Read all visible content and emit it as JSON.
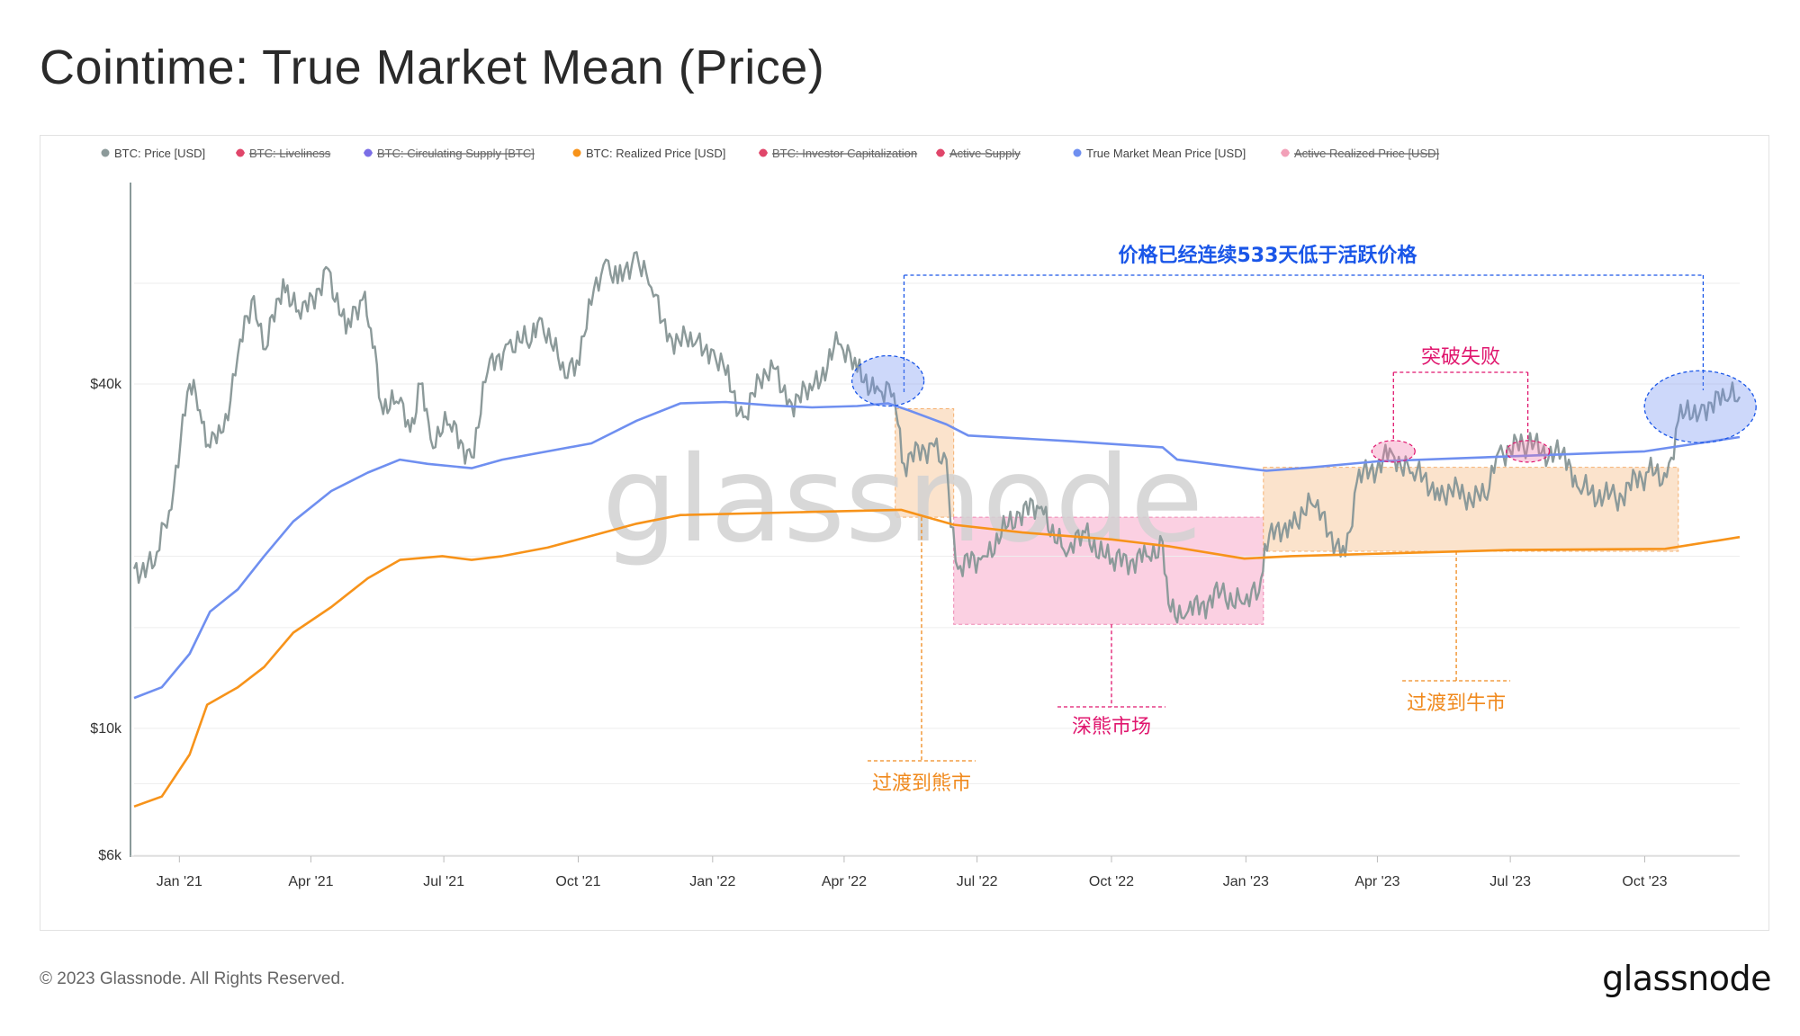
{
  "title": "Cointime: True Market Mean (Price)",
  "footer": {
    "copyright": "© 2023 Glassnode. All Rights Reserved.",
    "logo": "glassnode"
  },
  "watermark": "glassnode",
  "colors": {
    "price": "#8c9a9a",
    "true_mean": "#6f8ff0",
    "realized": "#f7931a",
    "strike_red": "#e0466a",
    "strike_purple": "#7b6ee6",
    "strike_pink": "#f2a0b8",
    "orange_zone": "#fbe3cc",
    "pink_zone": "#fbd0e2",
    "annotation_blue": "#1a56e8",
    "annotation_pink": "#e0166e",
    "annotation_orange": "#f08a1e"
  },
  "legend": [
    {
      "label": "BTC: Price [USD]",
      "color": "#8c9a9a",
      "active": true
    },
    {
      "label": "BTC: Liveliness",
      "color": "#e0466a",
      "active": false
    },
    {
      "label": "BTC: Circulating Supply [BTC]",
      "color": "#7b6ee6",
      "active": false
    },
    {
      "label": "BTC: Realized Price [USD]",
      "color": "#f7931a",
      "active": true
    },
    {
      "label": "BTC: Investor Capitalization",
      "color": "#e0466a",
      "active": false
    },
    {
      "label": "Active Supply",
      "color": "#e0466a",
      "active": false
    },
    {
      "label": "True Market Mean Price [USD]",
      "color": "#6f8ff0",
      "active": true
    },
    {
      "label": "Active Realized Price [USD]",
      "color": "#f2a0b8",
      "active": false
    }
  ],
  "annotations": {
    "days_below": "价格已经连续533天低于活跃价格",
    "breakout_fail": "突破失败",
    "deep_bear": "深熊市场",
    "to_bear": "过渡到熊市",
    "to_bull": "过渡到牛市"
  },
  "chart_data": {
    "type": "line",
    "y_scale": "log",
    "ylim": [
      6000,
      90000
    ],
    "y_ticks": [
      {
        "label": "$6k",
        "value": 6000
      },
      {
        "label": "$10k",
        "value": 10000
      },
      {
        "label": "$40k",
        "value": 40000
      }
    ],
    "x_range": [
      "2020-12-01",
      "2023-12-05"
    ],
    "x_ticks": [
      {
        "label": "Jan '21",
        "date": "2021-01-01"
      },
      {
        "label": "Apr '21",
        "date": "2021-04-01"
      },
      {
        "label": "Jul '21",
        "date": "2021-07-01"
      },
      {
        "label": "Oct '21",
        "date": "2021-10-01"
      },
      {
        "label": "Jan '22",
        "date": "2022-01-01"
      },
      {
        "label": "Apr '22",
        "date": "2022-04-01"
      },
      {
        "label": "Jul '22",
        "date": "2022-07-01"
      },
      {
        "label": "Oct '22",
        "date": "2022-10-01"
      },
      {
        "label": "Jan '23",
        "date": "2023-01-01"
      },
      {
        "label": "Apr '23",
        "date": "2023-04-01"
      },
      {
        "label": "Jul '23",
        "date": "2023-07-01"
      },
      {
        "label": "Oct '23",
        "date": "2023-10-01"
      }
    ],
    "series": [
      {
        "name": "BTC: Price [USD]",
        "color": "#8c9a9a",
        "points": [
          [
            "2020-12-01",
            19000
          ],
          [
            "2020-12-15",
            19300
          ],
          [
            "2020-12-25",
            24000
          ],
          [
            "2021-01-08",
            40000
          ],
          [
            "2021-01-15",
            36000
          ],
          [
            "2021-01-22",
            31000
          ],
          [
            "2021-01-31",
            33000
          ],
          [
            "2021-02-10",
            45000
          ],
          [
            "2021-02-21",
            57000
          ],
          [
            "2021-03-01",
            46000
          ],
          [
            "2021-03-13",
            61000
          ],
          [
            "2021-03-25",
            52000
          ],
          [
            "2021-04-13",
            63500
          ],
          [
            "2021-04-25",
            49000
          ],
          [
            "2021-05-08",
            58000
          ],
          [
            "2021-05-12",
            50000
          ],
          [
            "2021-05-19",
            37000
          ],
          [
            "2021-05-31",
            37000
          ],
          [
            "2021-06-08",
            33000
          ],
          [
            "2021-06-15",
            40000
          ],
          [
            "2021-06-22",
            32000
          ],
          [
            "2021-07-05",
            34000
          ],
          [
            "2021-07-20",
            29800
          ],
          [
            "2021-07-31",
            42000
          ],
          [
            "2021-08-14",
            47000
          ],
          [
            "2021-08-30",
            47500
          ],
          [
            "2021-09-06",
            52000
          ],
          [
            "2021-09-22",
            41000
          ],
          [
            "2021-09-30",
            44000
          ],
          [
            "2021-10-10",
            55000
          ],
          [
            "2021-10-20",
            66000
          ],
          [
            "2021-10-28",
            60000
          ],
          [
            "2021-11-10",
            68000
          ],
          [
            "2021-11-20",
            59000
          ],
          [
            "2021-12-04",
            48000
          ],
          [
            "2021-12-20",
            47000
          ],
          [
            "2021-12-31",
            46000
          ],
          [
            "2022-01-10",
            41500
          ],
          [
            "2022-01-22",
            35000
          ],
          [
            "2022-02-10",
            44000
          ],
          [
            "2022-02-24",
            37000
          ],
          [
            "2022-03-10",
            39000
          ],
          [
            "2022-03-28",
            47000
          ],
          [
            "2022-04-10",
            42000
          ],
          [
            "2022-04-25",
            39000
          ],
          [
            "2022-05-05",
            38500
          ],
          [
            "2022-05-12",
            29000
          ],
          [
            "2022-05-31",
            31500
          ],
          [
            "2022-06-10",
            29500
          ],
          [
            "2022-06-13",
            22500
          ],
          [
            "2022-06-18",
            19000
          ],
          [
            "2022-07-05",
            20000
          ],
          [
            "2022-07-30",
            23800
          ],
          [
            "2022-08-14",
            24400
          ],
          [
            "2022-08-31",
            20000
          ],
          [
            "2022-09-13",
            22000
          ],
          [
            "2022-09-30",
            19400
          ],
          [
            "2022-10-25",
            20000
          ],
          [
            "2022-11-05",
            21200
          ],
          [
            "2022-11-09",
            16500
          ],
          [
            "2022-11-21",
            15800
          ],
          [
            "2022-12-15",
            17300
          ],
          [
            "2022-12-31",
            16500
          ],
          [
            "2023-01-10",
            17300
          ],
          [
            "2023-01-14",
            21000
          ],
          [
            "2023-01-31",
            23100
          ],
          [
            "2023-02-16",
            24500
          ],
          [
            "2023-03-10",
            20000
          ],
          [
            "2023-03-18",
            27000
          ],
          [
            "2023-04-11",
            30300
          ],
          [
            "2023-04-25",
            28000
          ],
          [
            "2023-05-12",
            26300
          ],
          [
            "2023-06-15",
            25100
          ],
          [
            "2023-06-23",
            30500
          ],
          [
            "2023-07-13",
            31300
          ],
          [
            "2023-08-10",
            29500
          ],
          [
            "2023-08-17",
            26200
          ],
          [
            "2023-09-11",
            25200
          ],
          [
            "2023-10-02",
            28000
          ],
          [
            "2023-10-16",
            27500
          ],
          [
            "2023-10-24",
            34500
          ],
          [
            "2023-11-09",
            36800
          ],
          [
            "2023-11-25",
            37500
          ],
          [
            "2023-12-05",
            38000
          ]
        ]
      },
      {
        "name": "True Market Mean Price [USD]",
        "color": "#6f8ff0",
        "points": [
          [
            "2020-12-01",
            11300
          ],
          [
            "2020-12-20",
            11800
          ],
          [
            "2021-01-08",
            13500
          ],
          [
            "2021-01-22",
            16000
          ],
          [
            "2021-02-10",
            17500
          ],
          [
            "2021-02-28",
            20000
          ],
          [
            "2021-03-20",
            23000
          ],
          [
            "2021-04-15",
            26000
          ],
          [
            "2021-05-10",
            28000
          ],
          [
            "2021-06-01",
            29500
          ],
          [
            "2021-06-20",
            29000
          ],
          [
            "2021-07-20",
            28500
          ],
          [
            "2021-08-10",
            29500
          ],
          [
            "2021-09-10",
            30500
          ],
          [
            "2021-10-10",
            31500
          ],
          [
            "2021-11-10",
            34500
          ],
          [
            "2021-12-10",
            37000
          ],
          [
            "2022-01-10",
            37200
          ],
          [
            "2022-02-10",
            36700
          ],
          [
            "2022-03-10",
            36400
          ],
          [
            "2022-04-10",
            36600
          ],
          [
            "2022-05-01",
            37000
          ],
          [
            "2022-05-15",
            36000
          ],
          [
            "2022-06-10",
            34000
          ],
          [
            "2022-06-25",
            32500
          ],
          [
            "2022-09-01",
            31800
          ],
          [
            "2022-11-05",
            31000
          ],
          [
            "2022-11-15",
            29500
          ],
          [
            "2022-12-31",
            28500
          ],
          [
            "2023-01-15",
            28200
          ],
          [
            "2023-02-15",
            28600
          ],
          [
            "2023-04-01",
            29300
          ],
          [
            "2023-07-01",
            29900
          ],
          [
            "2023-10-01",
            30500
          ],
          [
            "2023-12-05",
            32300
          ]
        ]
      },
      {
        "name": "BTC: Realized Price [USD]",
        "color": "#f7931a",
        "points": [
          [
            "2020-12-01",
            7300
          ],
          [
            "2020-12-20",
            7600
          ],
          [
            "2021-01-08",
            9000
          ],
          [
            "2021-01-20",
            11000
          ],
          [
            "2021-02-10",
            11800
          ],
          [
            "2021-02-28",
            12800
          ],
          [
            "2021-03-20",
            14700
          ],
          [
            "2021-04-15",
            16300
          ],
          [
            "2021-05-10",
            18300
          ],
          [
            "2021-06-01",
            19700
          ],
          [
            "2021-06-30",
            20000
          ],
          [
            "2021-07-20",
            19700
          ],
          [
            "2021-08-10",
            20000
          ],
          [
            "2021-09-10",
            20700
          ],
          [
            "2021-10-10",
            21700
          ],
          [
            "2021-11-10",
            22800
          ],
          [
            "2021-12-10",
            23600
          ],
          [
            "2022-03-10",
            23900
          ],
          [
            "2022-05-10",
            24100
          ],
          [
            "2022-06-15",
            22700
          ],
          [
            "2022-08-01",
            22000
          ],
          [
            "2022-10-01",
            21400
          ],
          [
            "2022-11-10",
            20800
          ],
          [
            "2022-12-31",
            19800
          ],
          [
            "2023-02-01",
            20000
          ],
          [
            "2023-04-01",
            20200
          ],
          [
            "2023-07-01",
            20500
          ],
          [
            "2023-10-15",
            20600
          ],
          [
            "2023-12-05",
            21600
          ]
        ]
      }
    ]
  }
}
